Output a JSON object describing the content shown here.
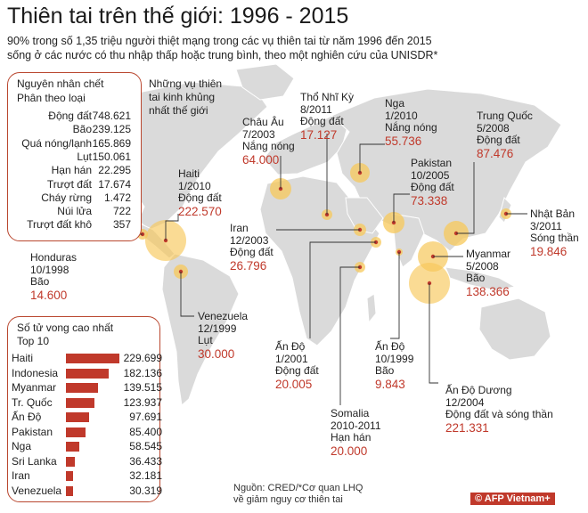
{
  "title": "Thiên tai trên thế giới: 1996 - 2015",
  "subtitle_line1": "90% trong số 1,35 triệu người thiệt mạng trong các vụ thiên tai từ năm 1996 đến 2015",
  "subtitle_line2": "sống ở các nước có thu nhập thấp hoặc trung bình, theo một nghiên cứu của UNISDR*",
  "causes_box": {
    "title1": "Nguyên nhân chết",
    "title2": "Phân theo loại",
    "rows": [
      {
        "name": "Động đất",
        "value": "748.621"
      },
      {
        "name": "Bão",
        "value": "239.125"
      },
      {
        "name": "Quá nóng/lạnh",
        "value": "165.869"
      },
      {
        "name": "Lụt",
        "value": "150.061"
      },
      {
        "name": "Hạn hán",
        "value": "22.295"
      },
      {
        "name": "Trượt đất",
        "value": "17.674"
      },
      {
        "name": "Cháy rừng",
        "value": "1.472"
      },
      {
        "name": "Núi lửa",
        "value": "722"
      },
      {
        "name": "Trượt đất khô",
        "value": "357"
      }
    ]
  },
  "deadliest_label": [
    "Những vụ thiên",
    "tai kinh khủng",
    "nhất thế giới"
  ],
  "events": [
    {
      "name": "Haiti",
      "date": "1/2010",
      "type": "Động đất",
      "deaths": "222.570"
    },
    {
      "name": "Châu Âu",
      "date": "7/2003",
      "type": "Nắng nóng",
      "deaths": "64.000"
    },
    {
      "name": "Thổ Nhĩ Kỳ",
      "date": "8/2011",
      "type": "Động đất",
      "deaths": "17.127"
    },
    {
      "name": "Nga",
      "date": "1/2010",
      "type": "Nắng nóng",
      "deaths": "55.736"
    },
    {
      "name": "Trung Quốc",
      "date": "5/2008",
      "type": "Động đất",
      "deaths": "87.476"
    },
    {
      "name": "Pakistan",
      "date": "10/2005",
      "type": "Động đất",
      "deaths": "73.338"
    },
    {
      "name": "Iran",
      "date": "12/2003",
      "type": "Động đất",
      "deaths": "26.796"
    },
    {
      "name": "Nhật Bản",
      "date": "3/2011",
      "type": "Sóng thần",
      "deaths": "19.846"
    },
    {
      "name": "Honduras",
      "date": "10/1998",
      "type": "Bão",
      "deaths": "14.600"
    },
    {
      "name": "Myanmar",
      "date": "5/2008",
      "type": "Bão",
      "deaths": "138.366"
    },
    {
      "name": "Venezuela",
      "date": "12/1999",
      "type": "Lụt",
      "deaths": "30.000"
    },
    {
      "name": "Ấn Độ",
      "date": "1/2001",
      "type": "Động đất",
      "deaths": "20.005"
    },
    {
      "name": "Ấn Độ",
      "date": "10/1999",
      "type": "Bão",
      "deaths": "9.843"
    },
    {
      "name": "Somalia",
      "date": "2010-2011",
      "type": "Hạn hán",
      "deaths": "20.000"
    },
    {
      "name": "Ấn Độ Dương",
      "date": "12/2004",
      "type": "Động đất và sóng thần",
      "deaths": "221.331"
    }
  ],
  "top10_box": {
    "title1": "Số tử vong cao nhất",
    "title2": "Top 10"
  },
  "source_line1": "Nguồn: CRED/*Cơ quan LHQ",
  "source_line2": "về giảm nguy cơ thiên tai",
  "logo_text": "© AFP Vietnam+",
  "colors": {
    "accent": "#c0392b",
    "bubble": "#f7c85a",
    "land": "#d9d9d9",
    "box_border": "#b9472f"
  },
  "chart_data": {
    "type": "bar",
    "title": "Số tử vong cao nhất",
    "subtitle": "Top 10",
    "categories": [
      "Haiti",
      "Indonesia",
      "Myanmar",
      "Tr. Quốc",
      "Ấn Độ",
      "Pakistan",
      "Nga",
      "Sri Lanka",
      "Iran",
      "Venezuela"
    ],
    "values": [
      229699,
      182136,
      139515,
      123937,
      97691,
      85400,
      58545,
      36433,
      32181,
      30319
    ],
    "value_labels": [
      "229.699",
      "182.136",
      "139.515",
      "123.937",
      "97.691",
      "85.400",
      "58.545",
      "36.433",
      "32.181",
      "30.319"
    ],
    "orientation": "horizontal",
    "xlabel": "",
    "ylabel": "",
    "xlim": [
      0,
      229699
    ],
    "grid": false
  }
}
